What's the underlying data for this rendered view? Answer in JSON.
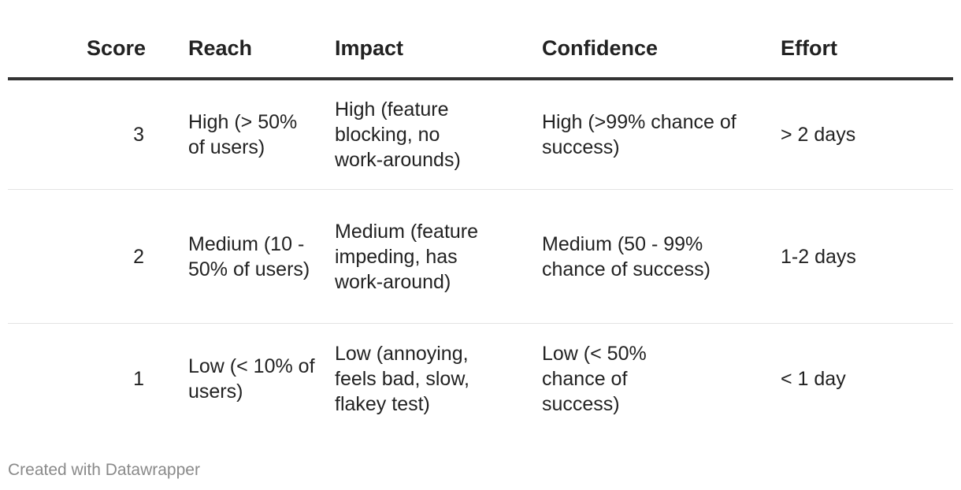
{
  "table": {
    "headers": {
      "score": "Score",
      "reach": "Reach",
      "impact": "Impact",
      "confidence": "Confidence",
      "effort": "Effort"
    },
    "rows": [
      {
        "score": "3",
        "reach": "High (> 50% of users)",
        "impact": "High (feature blocking, no work-arounds)",
        "confidence": "High (>99% chance of success)",
        "effort": "> 2 days"
      },
      {
        "score": "2",
        "reach": "Medium (10 - 50% of users)",
        "impact": "Medium (feature impeding, has work-around)",
        "confidence": "Medium (50 - 99% chance of success)",
        "effort": "1-2 days"
      },
      {
        "score": "1",
        "reach": "Low (< 10% of users)",
        "impact": "Low (annoying, feels bad, slow, flakey test)",
        "confidence": "Low (< 50% chance of success)",
        "effort": "< 1 day"
      }
    ]
  },
  "footer": {
    "credit": "Created with Datawrapper"
  }
}
